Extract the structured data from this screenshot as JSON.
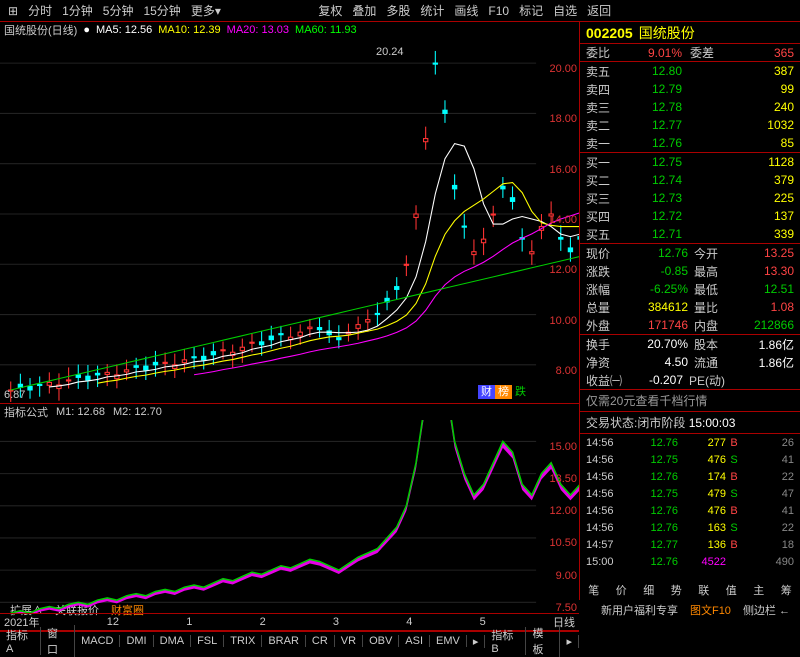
{
  "toolbar": {
    "items": [
      "分时",
      "1分钟",
      "5分钟",
      "15分钟",
      "更多▾",
      "复权",
      "叠加",
      "多股",
      "统计",
      "画线",
      "F10",
      "标记",
      "自选",
      "返回"
    ]
  },
  "stock": {
    "code": "002205",
    "name": "国统股份"
  },
  "chart_header": {
    "title": "国统股份(日线)",
    "ma5_label": "MA5:",
    "ma5_value": "12.56",
    "ma10_label": "MA10:",
    "ma10_value": "12.39",
    "ma20_label": "MA20:",
    "ma20_value": "13.03",
    "ma60_label": "MA60:",
    "ma60_value": "11.93"
  },
  "kline": {
    "ylim": [
      6.5,
      21
    ],
    "yticks": [
      8.0,
      10.0,
      12.0,
      14.0,
      16.0,
      18.0,
      20.0
    ],
    "ytick_color": "#d33",
    "peak_label": "20.24",
    "low_label": "6.87",
    "candles_x_start": 8,
    "candles_dx": 9,
    "ma5_color": "#ffffff",
    "ma10_color": "#ffff00",
    "ma20_color": "#ff00ff",
    "ma60_color": "#00cc00",
    "up_color": "#ff3333",
    "down_color": "#00ffff",
    "badges": [
      "财",
      "榜",
      "跌"
    ]
  },
  "indicator": {
    "title": "指标公式",
    "m1_label": "M1:",
    "m1_value": "12.68",
    "m2_label": "M2:",
    "m2_value": "12.70",
    "ylim": [
      7,
      16
    ],
    "yticks": [
      7.5,
      9.0,
      10.5,
      12.0,
      13.5,
      15.0
    ],
    "ytick_color": "#d33",
    "fill_color": "#ff00ff",
    "line_color": "#00cc00"
  },
  "date_axis": {
    "year": "2021年",
    "ticks": [
      "12",
      "1",
      "2",
      "3",
      "4",
      "5"
    ],
    "mode": "日线"
  },
  "order_book": {
    "commit_ratio_label": "委比",
    "commit_ratio": "9.01%",
    "commit_diff_label": "委差",
    "commit_diff": "365",
    "asks": [
      {
        "lbl": "卖五",
        "price": "12.80",
        "vol": "387"
      },
      {
        "lbl": "卖四",
        "price": "12.79",
        "vol": "99"
      },
      {
        "lbl": "卖三",
        "price": "12.78",
        "vol": "240"
      },
      {
        "lbl": "卖二",
        "price": "12.77",
        "vol": "1032"
      },
      {
        "lbl": "卖一",
        "price": "12.76",
        "vol": "85"
      }
    ],
    "bids": [
      {
        "lbl": "买一",
        "price": "12.75",
        "vol": "1128"
      },
      {
        "lbl": "买二",
        "price": "12.74",
        "vol": "379"
      },
      {
        "lbl": "买三",
        "price": "12.73",
        "vol": "225"
      },
      {
        "lbl": "买四",
        "price": "12.72",
        "vol": "137"
      },
      {
        "lbl": "买五",
        "price": "12.71",
        "vol": "339"
      }
    ]
  },
  "quote": {
    "rows": [
      {
        "l1": "现价",
        "v1": "12.76",
        "c1": "green",
        "l2": "今开",
        "v2": "13.25",
        "c2": "red"
      },
      {
        "l1": "涨跌",
        "v1": "-0.85",
        "c1": "green",
        "l2": "最高",
        "v2": "13.30",
        "c2": "red"
      },
      {
        "l1": "涨幅",
        "v1": "-6.25%",
        "c1": "green",
        "l2": "最低",
        "v2": "12.51",
        "c2": "green"
      },
      {
        "l1": "总量",
        "v1": "384612",
        "c1": "yellow",
        "l2": "量比",
        "v2": "1.08",
        "c2": "red"
      },
      {
        "l1": "外盘",
        "v1": "171746",
        "c1": "red",
        "l2": "内盘",
        "v2": "212866",
        "c2": "green"
      }
    ],
    "rows2": [
      {
        "l1": "换手",
        "v1": "20.70%",
        "c1": "white",
        "l2": "股本",
        "v2": "1.86亿",
        "c2": "white"
      },
      {
        "l1": "净资",
        "v1": "4.50",
        "c1": "white",
        "l2": "流通",
        "v2": "1.86亿",
        "c2": "white"
      }
    ],
    "pe_row": {
      "l1": "收益㈠",
      "v1": "-0.207",
      "l2": "PE(动)",
      "v2": ""
    }
  },
  "promo": "仅需20元查看千档行情",
  "status": {
    "label": "交易状态:",
    "text": "闭市阶段",
    "time": "15:00:03"
  },
  "trades": [
    {
      "t": "14:56",
      "p": "12.76",
      "v": "277",
      "d": "B",
      "dc": "red",
      "n": "26"
    },
    {
      "t": "14:56",
      "p": "12.75",
      "v": "476",
      "d": "S",
      "dc": "green",
      "n": "41"
    },
    {
      "t": "14:56",
      "p": "12.76",
      "v": "174",
      "d": "B",
      "dc": "red",
      "n": "22"
    },
    {
      "t": "14:56",
      "p": "12.75",
      "v": "479",
      "d": "S",
      "dc": "green",
      "n": "47"
    },
    {
      "t": "14:56",
      "p": "12.76",
      "v": "476",
      "d": "B",
      "dc": "red",
      "n": "41"
    },
    {
      "t": "14:56",
      "p": "12.76",
      "v": "163",
      "d": "S",
      "dc": "green",
      "n": "22"
    },
    {
      "t": "14:57",
      "p": "12.77",
      "v": "136",
      "d": "B",
      "dc": "red",
      "n": "18"
    },
    {
      "t": "15:00",
      "p": "12.76",
      "v": "4522",
      "d": "",
      "dc": "magenta",
      "n": "490",
      "vc": "magenta"
    }
  ],
  "bottom_tabs": {
    "a": "指标A",
    "b": "窗口",
    "items": [
      "MACD",
      "DMI",
      "DMA",
      "FSL",
      "TRIX",
      "BRAR",
      "CR",
      "VR",
      "OBV",
      "ASI",
      "EMV"
    ],
    "c": "指标B",
    "d": "模板",
    "arrow": "▸"
  },
  "bottom_bar": {
    "items": [
      "扩展∧",
      "关联报价",
      "财富圈"
    ],
    "right": [
      "新用户福利专享",
      "图文F10",
      "侧边栏 ←"
    ]
  },
  "side_tabs": [
    "笔",
    "价",
    "细",
    "势",
    "联",
    "值",
    "主",
    "筹"
  ]
}
